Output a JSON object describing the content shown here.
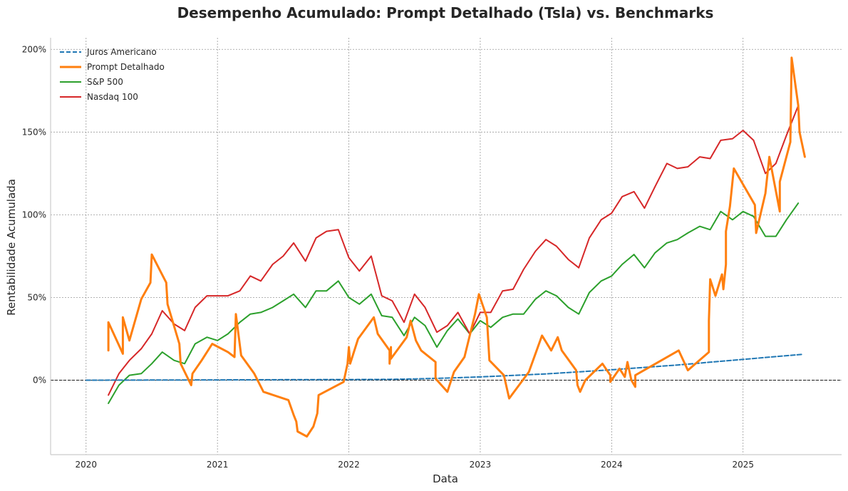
{
  "chart_data": {
    "type": "line",
    "title": "Desempenho Acumulado: Prompt Detalhado (Tsla) vs. Benchmarks",
    "xlabel": "Data",
    "ylabel": "Rentabilidade Acumulada",
    "xlim": [
      2019.73,
      2025.75
    ],
    "ylim": [
      -45,
      207
    ],
    "x_ticks": [
      2020,
      2021,
      2022,
      2023,
      2024,
      2025
    ],
    "x_tick_labels": [
      "2020",
      "2021",
      "2022",
      "2023",
      "2024",
      "2025"
    ],
    "y_ticks": [
      0,
      50,
      100,
      150,
      200
    ],
    "y_tick_labels": [
      "0%",
      "50%",
      "100%",
      "150%",
      "200%"
    ],
    "grid": true,
    "legend_position": "top-left",
    "baseline": 0,
    "series": [
      {
        "name": "Juros Americano",
        "color": "#1f77b4",
        "dash": true,
        "width": 2,
        "points": [
          [
            2020.0,
            0
          ],
          [
            2020.5,
            0.1
          ],
          [
            2021.0,
            0.2
          ],
          [
            2021.5,
            0.3
          ],
          [
            2022.0,
            0.4
          ],
          [
            2022.3,
            0.5
          ],
          [
            2022.5,
            0.8
          ],
          [
            2022.75,
            1.3
          ],
          [
            2023.0,
            2.0
          ],
          [
            2023.5,
            3.8
          ],
          [
            2024.0,
            6.3
          ],
          [
            2024.5,
            9.2
          ],
          [
            2025.0,
            12.6
          ],
          [
            2025.45,
            15.6
          ]
        ]
      },
      {
        "name": "Prompt Detalhado",
        "color": "#ff7f0e",
        "dash": false,
        "width": 3,
        "points": [
          [
            2020.17,
            18
          ],
          [
            2020.17,
            35
          ],
          [
            2020.28,
            16
          ],
          [
            2020.28,
            38
          ],
          [
            2020.33,
            24
          ],
          [
            2020.42,
            49
          ],
          [
            2020.49,
            59
          ],
          [
            2020.5,
            76
          ],
          [
            2020.61,
            59
          ],
          [
            2020.62,
            46
          ],
          [
            2020.71,
            22
          ],
          [
            2020.72,
            10
          ],
          [
            2020.8,
            -3
          ],
          [
            2020.81,
            4
          ],
          [
            2020.88,
            12
          ],
          [
            2020.96,
            22
          ],
          [
            2021.08,
            17
          ],
          [
            2021.13,
            14
          ],
          [
            2021.14,
            40
          ],
          [
            2021.18,
            15
          ],
          [
            2021.28,
            4
          ],
          [
            2021.35,
            -7
          ],
          [
            2021.54,
            -12
          ],
          [
            2021.58,
            -21
          ],
          [
            2021.6,
            -25
          ],
          [
            2021.61,
            -31
          ],
          [
            2021.68,
            -34
          ],
          [
            2021.73,
            -28
          ],
          [
            2021.76,
            -20
          ],
          [
            2021.77,
            -9
          ],
          [
            2021.96,
            -1
          ],
          [
            2021.99,
            10
          ],
          [
            2022.0,
            20
          ],
          [
            2022.01,
            10
          ],
          [
            2022.07,
            25
          ],
          [
            2022.19,
            38
          ],
          [
            2022.22,
            28
          ],
          [
            2022.31,
            18
          ],
          [
            2022.31,
            10
          ],
          [
            2022.32,
            20
          ],
          [
            2022.32,
            13
          ],
          [
            2022.44,
            26
          ],
          [
            2022.47,
            36
          ],
          [
            2022.51,
            24
          ],
          [
            2022.55,
            18
          ],
          [
            2022.66,
            11
          ],
          [
            2022.66,
            1
          ],
          [
            2022.75,
            -7
          ],
          [
            2022.8,
            5
          ],
          [
            2022.88,
            14
          ],
          [
            2022.96,
            40
          ],
          [
            2022.99,
            52
          ],
          [
            2023.05,
            38
          ],
          [
            2023.07,
            12
          ],
          [
            2023.18,
            3
          ],
          [
            2023.22,
            -11
          ],
          [
            2023.37,
            5
          ],
          [
            2023.47,
            27
          ],
          [
            2023.54,
            18
          ],
          [
            2023.59,
            26
          ],
          [
            2023.62,
            18
          ],
          [
            2023.73,
            6
          ],
          [
            2023.74,
            -3
          ],
          [
            2023.76,
            -7
          ],
          [
            2023.8,
            0
          ],
          [
            2023.93,
            10
          ],
          [
            2023.99,
            3
          ],
          [
            2023.99,
            -1
          ],
          [
            2024.06,
            7
          ],
          [
            2024.1,
            2
          ],
          [
            2024.12,
            11
          ],
          [
            2024.15,
            0
          ],
          [
            2024.18,
            -4
          ],
          [
            2024.18,
            3
          ],
          [
            2024.51,
            18
          ],
          [
            2024.58,
            6
          ],
          [
            2024.74,
            17
          ],
          [
            2024.74,
            36
          ],
          [
            2024.75,
            61
          ],
          [
            2024.79,
            51
          ],
          [
            2024.84,
            64
          ],
          [
            2024.85,
            55
          ],
          [
            2024.87,
            70
          ],
          [
            2024.87,
            90
          ],
          [
            2024.9,
            105
          ],
          [
            2024.93,
            128
          ],
          [
            2025.09,
            106
          ],
          [
            2025.1,
            89
          ],
          [
            2025.17,
            113
          ],
          [
            2025.2,
            135
          ],
          [
            2025.28,
            102
          ],
          [
            2025.28,
            120
          ],
          [
            2025.36,
            144
          ],
          [
            2025.37,
            195
          ],
          [
            2025.42,
            166
          ],
          [
            2025.43,
            150
          ],
          [
            2025.47,
            135
          ]
        ]
      },
      {
        "name": "S&P 500",
        "color": "#2ca02c",
        "dash": false,
        "width": 2,
        "points": [
          [
            2020.17,
            -14
          ],
          [
            2020.25,
            -3
          ],
          [
            2020.33,
            3
          ],
          [
            2020.42,
            4
          ],
          [
            2020.5,
            10
          ],
          [
            2020.58,
            17
          ],
          [
            2020.67,
            12
          ],
          [
            2020.75,
            10
          ],
          [
            2020.83,
            22
          ],
          [
            2020.92,
            26
          ],
          [
            2021.0,
            24
          ],
          [
            2021.08,
            28
          ],
          [
            2021.17,
            35
          ],
          [
            2021.25,
            40
          ],
          [
            2021.33,
            41
          ],
          [
            2021.42,
            44
          ],
          [
            2021.5,
            48
          ],
          [
            2021.58,
            52
          ],
          [
            2021.67,
            44
          ],
          [
            2021.75,
            54
          ],
          [
            2021.83,
            54
          ],
          [
            2021.92,
            60
          ],
          [
            2022.0,
            50
          ],
          [
            2022.08,
            46
          ],
          [
            2022.17,
            52
          ],
          [
            2022.25,
            39
          ],
          [
            2022.33,
            38
          ],
          [
            2022.42,
            27
          ],
          [
            2022.5,
            38
          ],
          [
            2022.58,
            33
          ],
          [
            2022.67,
            20
          ],
          [
            2022.75,
            30
          ],
          [
            2022.83,
            37
          ],
          [
            2022.92,
            28
          ],
          [
            2023.0,
            36
          ],
          [
            2023.08,
            32
          ],
          [
            2023.17,
            38
          ],
          [
            2023.25,
            40
          ],
          [
            2023.33,
            40
          ],
          [
            2023.42,
            49
          ],
          [
            2023.5,
            54
          ],
          [
            2023.58,
            51
          ],
          [
            2023.67,
            44
          ],
          [
            2023.75,
            40
          ],
          [
            2023.83,
            53
          ],
          [
            2023.92,
            60
          ],
          [
            2024.0,
            63
          ],
          [
            2024.08,
            70
          ],
          [
            2024.17,
            76
          ],
          [
            2024.25,
            68
          ],
          [
            2024.33,
            77
          ],
          [
            2024.42,
            83
          ],
          [
            2024.5,
            85
          ],
          [
            2024.58,
            89
          ],
          [
            2024.67,
            93
          ],
          [
            2024.75,
            91
          ],
          [
            2024.83,
            102
          ],
          [
            2024.92,
            97
          ],
          [
            2025.0,
            102
          ],
          [
            2025.08,
            99
          ],
          [
            2025.17,
            87
          ],
          [
            2025.25,
            87
          ],
          [
            2025.33,
            97
          ],
          [
            2025.42,
            107
          ]
        ]
      },
      {
        "name": "Nasdaq 100",
        "color": "#d62728",
        "dash": false,
        "width": 2,
        "points": [
          [
            2020.17,
            -9
          ],
          [
            2020.25,
            4
          ],
          [
            2020.33,
            12
          ],
          [
            2020.42,
            19
          ],
          [
            2020.5,
            28
          ],
          [
            2020.58,
            42
          ],
          [
            2020.67,
            34
          ],
          [
            2020.75,
            30
          ],
          [
            2020.83,
            44
          ],
          [
            2020.92,
            51
          ],
          [
            2021.0,
            51
          ],
          [
            2021.08,
            51
          ],
          [
            2021.17,
            54
          ],
          [
            2021.25,
            63
          ],
          [
            2021.33,
            60
          ],
          [
            2021.42,
            70
          ],
          [
            2021.5,
            75
          ],
          [
            2021.58,
            83
          ],
          [
            2021.67,
            72
          ],
          [
            2021.75,
            86
          ],
          [
            2021.83,
            90
          ],
          [
            2021.92,
            91
          ],
          [
            2022.0,
            74
          ],
          [
            2022.08,
            66
          ],
          [
            2022.17,
            75
          ],
          [
            2022.25,
            51
          ],
          [
            2022.33,
            48
          ],
          [
            2022.42,
            35
          ],
          [
            2022.5,
            52
          ],
          [
            2022.58,
            44
          ],
          [
            2022.67,
            29
          ],
          [
            2022.75,
            33
          ],
          [
            2022.83,
            41
          ],
          [
            2022.92,
            28
          ],
          [
            2023.0,
            41
          ],
          [
            2023.08,
            41
          ],
          [
            2023.17,
            54
          ],
          [
            2023.25,
            55
          ],
          [
            2023.33,
            67
          ],
          [
            2023.42,
            78
          ],
          [
            2023.5,
            85
          ],
          [
            2023.58,
            81
          ],
          [
            2023.67,
            73
          ],
          [
            2023.75,
            68
          ],
          [
            2023.83,
            86
          ],
          [
            2023.92,
            97
          ],
          [
            2024.0,
            101
          ],
          [
            2024.08,
            111
          ],
          [
            2024.17,
            114
          ],
          [
            2024.25,
            104
          ],
          [
            2024.33,
            117
          ],
          [
            2024.42,
            131
          ],
          [
            2024.5,
            128
          ],
          [
            2024.58,
            129
          ],
          [
            2024.67,
            135
          ],
          [
            2024.75,
            134
          ],
          [
            2024.83,
            145
          ],
          [
            2024.92,
            146
          ],
          [
            2025.0,
            151
          ],
          [
            2025.08,
            145
          ],
          [
            2025.17,
            125
          ],
          [
            2025.25,
            131
          ],
          [
            2025.33,
            148
          ],
          [
            2025.42,
            166
          ]
        ]
      }
    ]
  }
}
